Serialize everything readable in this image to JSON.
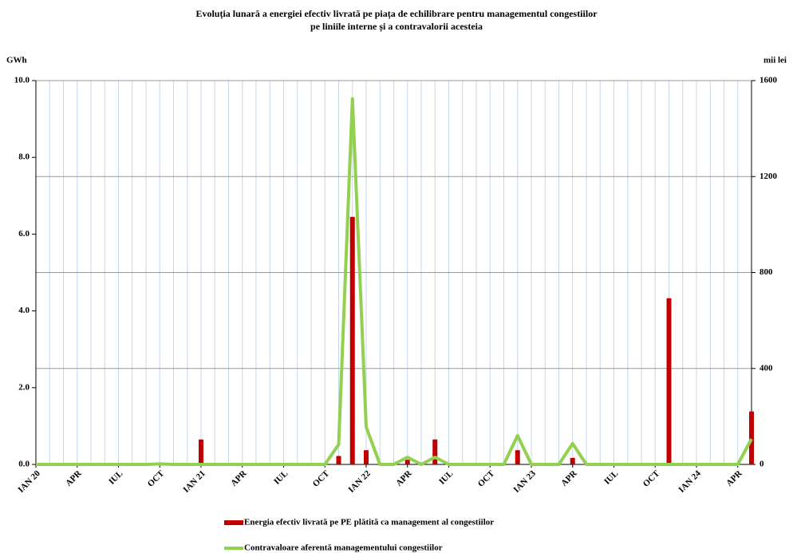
{
  "chart_data": {
    "type": "bar-line",
    "title": [
      "Evoluția lunară a energiei efectiv livrată pe piața de echilibrare pentru managementul congestiilor",
      "pe liniile interne și a contravalorii acesteia"
    ],
    "y_label": "GWh",
    "y2_label": "mii lei",
    "categories": [
      "IAN 20",
      null,
      null,
      "APR",
      null,
      null,
      "IUL",
      null,
      null,
      "OCT",
      null,
      null,
      "IAN 21",
      null,
      null,
      "APR",
      null,
      null,
      "IUL",
      null,
      null,
      "OCT",
      null,
      null,
      "IAN 22",
      null,
      null,
      "APR",
      null,
      null,
      "IUL",
      null,
      null,
      "OCT",
      null,
      null,
      "IAN 23",
      null,
      null,
      "APR",
      null,
      null,
      "IUL",
      null,
      null,
      "OCT",
      null,
      null,
      "IAN 24",
      null,
      null,
      "APR",
      null
    ],
    "series": [
      {
        "name": "Energia efectiv livrată pe PE plătită ca management al congestiilor",
        "color": "#c00000",
        "kind": "bar",
        "values": [
          0,
          0,
          0,
          0,
          0,
          0,
          0,
          0,
          0,
          0,
          0,
          0,
          0.65,
          0,
          0,
          0.03,
          0,
          0,
          0,
          0,
          0,
          0,
          0.22,
          6.45,
          0.37,
          0,
          0,
          0.12,
          0,
          0.65,
          0,
          0,
          0,
          0,
          0,
          0.37,
          0,
          0,
          0,
          0.17,
          0,
          0,
          0,
          0,
          0,
          0,
          4.33,
          0,
          0,
          0,
          0,
          0,
          1.38
        ]
      },
      {
        "name": "Contravaloare aferentă managementului congestiilor",
        "color": "#92d050",
        "kind": "line",
        "axis": "y2",
        "values": [
          0,
          0,
          0,
          0,
          0,
          0,
          0,
          0,
          0,
          2,
          0,
          0,
          0,
          0,
          0,
          0,
          0,
          0,
          0,
          0,
          0,
          0,
          83,
          1524,
          156,
          0,
          0,
          30,
          0,
          30,
          0,
          0,
          0,
          0,
          0,
          120,
          0,
          0,
          0,
          87,
          0,
          0,
          0,
          0,
          0,
          0,
          0,
          0,
          0,
          0,
          0,
          0,
          106
        ]
      }
    ],
    "ylim": [
      0,
      10
    ],
    "yticks": [
      {
        "value": 0,
        "label": "0.0"
      },
      {
        "value": 2,
        "label": "2.0"
      },
      {
        "value": 4,
        "label": "4.0"
      },
      {
        "value": 6,
        "label": "6.0"
      },
      {
        "value": 8,
        "label": "8.0"
      },
      {
        "value": 10,
        "label": "10.0"
      }
    ],
    "y2lim": [
      0,
      1600
    ],
    "y2ticks": [
      0,
      400,
      800,
      1200,
      1600
    ],
    "grid": true
  }
}
